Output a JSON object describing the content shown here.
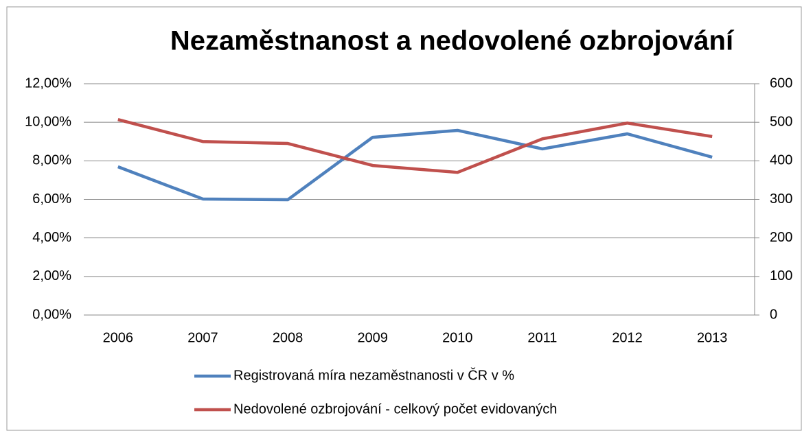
{
  "chart_data": {
    "type": "line",
    "title": "Nezaměstnanost a nedovolené ozbrojování",
    "categories": [
      "2006",
      "2007",
      "2008",
      "2009",
      "2010",
      "2011",
      "2012",
      "2013"
    ],
    "series": [
      {
        "name": "Registrovaná míra nezaměstnanosti v ČR v %",
        "color": "#4f81bd",
        "axis": "y",
        "values": [
          7.69,
          6.02,
          5.98,
          9.22,
          9.58,
          8.62,
          9.4,
          8.19
        ]
      },
      {
        "name": "Nedovolené ozbrojování - celkový počet evidovaných",
        "color": "#c0504d",
        "axis": "y2",
        "values": [
          507,
          450,
          445,
          388,
          370,
          457,
          498,
          463
        ]
      }
    ],
    "ylim": [
      0,
      12
    ],
    "yticks": [
      {
        "value": 0,
        "label": "0,00%"
      },
      {
        "value": 2,
        "label": "2,00%"
      },
      {
        "value": 4,
        "label": "4,00%"
      },
      {
        "value": 6,
        "label": "6,00%"
      },
      {
        "value": 8,
        "label": "8,00%"
      },
      {
        "value": 10,
        "label": "10,00%"
      },
      {
        "value": 12,
        "label": "12,00%"
      }
    ],
    "y2lim": [
      0,
      600
    ],
    "y2ticks": [
      0,
      100,
      200,
      300,
      400,
      500,
      600
    ],
    "grid": true
  }
}
